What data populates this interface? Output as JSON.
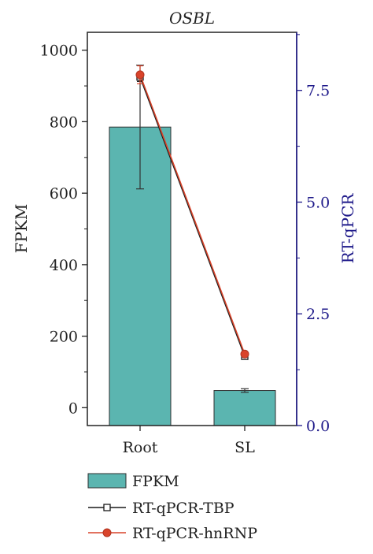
{
  "colors": {
    "bar_fill": "#5bb5b0",
    "bar_stroke": "#2f2f2f",
    "axis_left": "#222222",
    "axis_right": "#1f1a8a",
    "tbp_line": "#1a1a1a",
    "hnrnp_line": "#d9442b",
    "hnrnp_marker": "#d9442b"
  },
  "chart_data": {
    "type": "bar",
    "title": "OSBL",
    "categories": [
      "Root",
      "SL"
    ],
    "ylabel": "FPKM",
    "ylim": [
      -50,
      1050
    ],
    "yticks": [
      0,
      200,
      400,
      600,
      800,
      1000
    ],
    "y2label": "RT-qPCR",
    "y2lim": [
      0,
      8.8
    ],
    "y2ticks": [
      0.0,
      2.5,
      5.0,
      7.5
    ],
    "y2tick_labels": [
      "0.0",
      "2.5",
      "5.0",
      "7.5"
    ],
    "series": [
      {
        "name": "FPKM",
        "kind": "bar",
        "axis": "left",
        "values": [
          785,
          48
        ],
        "errors": [
          173,
          5
        ]
      },
      {
        "name": "RT-qPCR-TBP",
        "kind": "line",
        "marker": "open-square",
        "axis": "right",
        "values": [
          7.8,
          1.55
        ],
        "errors": [
          0.1,
          0.03
        ]
      },
      {
        "name": "RT-qPCR-hnRNP",
        "kind": "line",
        "marker": "filled-circle",
        "axis": "right",
        "values": [
          7.85,
          1.6
        ],
        "errors": [
          0.2,
          0.03
        ]
      }
    ],
    "legend_position": "bottom-left",
    "grid": false
  }
}
